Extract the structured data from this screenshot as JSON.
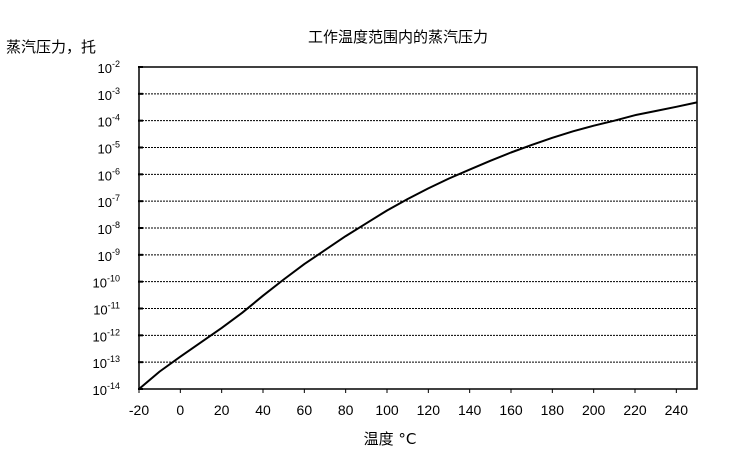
{
  "chart_data": {
    "type": "line",
    "title": "工作温度范围内的蒸汽压力",
    "ylabel": "蒸汽压力，托",
    "xlabel": "温度 °C",
    "x_ticks": [
      -20,
      0,
      20,
      40,
      60,
      80,
      100,
      120,
      140,
      160,
      180,
      200,
      220,
      240
    ],
    "xlim": [
      -20,
      250
    ],
    "y_scale": "log",
    "y_exponents": [
      -2,
      -3,
      -4,
      -5,
      -6,
      -7,
      -8,
      -9,
      -10,
      -11,
      -12,
      -13,
      -14
    ],
    "ylim": [
      1e-14,
      0.01
    ],
    "grid": "horizontal",
    "series": [
      {
        "color": "#000000",
        "x": [
          -20,
          -10,
          0,
          10,
          20,
          30,
          40,
          50,
          60,
          70,
          80,
          90,
          100,
          110,
          120,
          130,
          140,
          150,
          160,
          170,
          180,
          190,
          200,
          210,
          220,
          230,
          240,
          250
        ],
        "y": [
          1e-14,
          4.5e-14,
          1.6e-13,
          5.5e-13,
          1.9e-12,
          7e-12,
          3e-11,
          1.2e-10,
          4.5e-10,
          1.5e-09,
          5e-09,
          1.5e-08,
          4.5e-08,
          1.2e-07,
          3e-07,
          7e-07,
          1.5e-06,
          3.2e-06,
          6.5e-06,
          1.25e-05,
          2.3e-05,
          4e-05,
          6.5e-05,
          0.0001,
          0.00016,
          0.00023,
          0.00033,
          0.00048
        ]
      }
    ]
  }
}
